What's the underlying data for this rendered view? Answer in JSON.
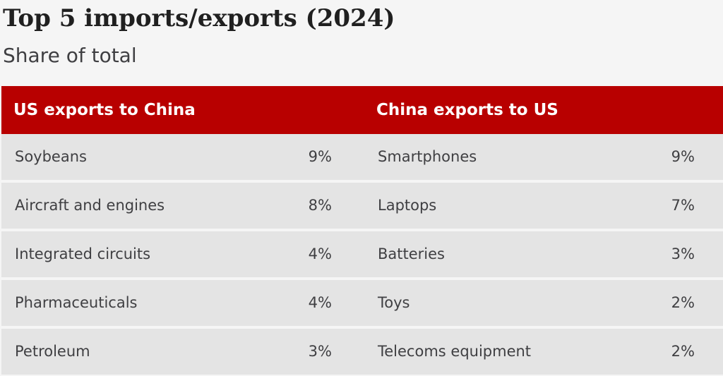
{
  "title": "Top 5 imports/exports (2024)",
  "subtitle": "Share of total",
  "colors": {
    "header_bg": "#b80000",
    "row_bg": "#e4e4e4",
    "page_bg": "#f5f5f5"
  },
  "chart_data": {
    "type": "table",
    "title": "Top 5 imports/exports (2024)",
    "subtitle": "Share of total",
    "columns": [
      "US exports to China",
      "China exports to US"
    ],
    "rows": [
      {
        "us_item": "Soybeans",
        "us_share": "9%",
        "cn_item": "Smartphones",
        "cn_share": "9%"
      },
      {
        "us_item": "Aircraft and engines",
        "us_share": "8%",
        "cn_item": "Laptops",
        "cn_share": "7%"
      },
      {
        "us_item": "Integrated circuits",
        "us_share": "4%",
        "cn_item": "Batteries",
        "cn_share": "3%"
      },
      {
        "us_item": "Pharmaceuticals",
        "us_share": "4%",
        "cn_item": "Toys",
        "cn_share": "2%"
      },
      {
        "us_item": "Petroleum",
        "us_share": "3%",
        "cn_item": "Telecoms equipment",
        "cn_share": "2%"
      }
    ]
  }
}
